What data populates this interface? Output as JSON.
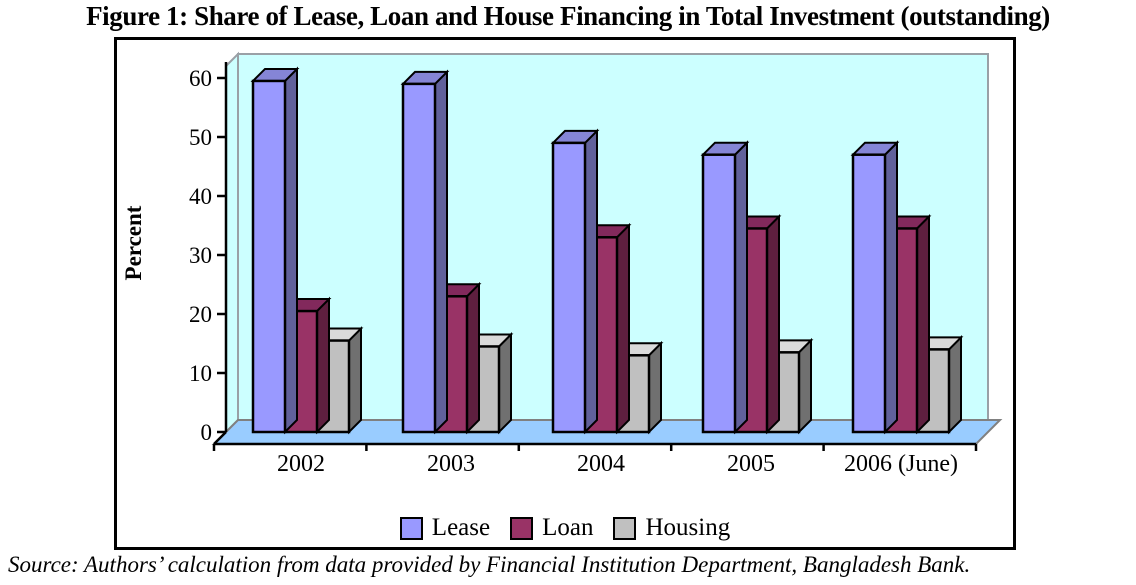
{
  "title": "Figure 1: Share of Lease, Loan and House Financing in Total Investment (outstanding)",
  "source_note": "Source: Authors’ calculation from data provided by Financial Institution Department, Bangladesh Bank.",
  "chart_data": {
    "type": "bar",
    "style": "3d-column",
    "title": "Figure 1: Share of Lease, Loan and House Financing in Total Investment (outstanding)",
    "categories": [
      "2002",
      "2003",
      "2004",
      "2005",
      "2006 (June)"
    ],
    "series": [
      {
        "name": "Lease",
        "color": "#9999FF",
        "top": "#8585D6",
        "side": "#61619B",
        "values": [
          59.5,
          59.0,
          49.0,
          47.0,
          47.0
        ]
      },
      {
        "name": "Loan",
        "color": "#993366",
        "top": "#82295C",
        "side": "#5E1F3F",
        "values": [
          20.5,
          23.0,
          33.0,
          34.5,
          34.5
        ]
      },
      {
        "name": "Housing",
        "color": "#C0C0C0",
        "top": "#DADADA",
        "side": "#707070",
        "values": [
          15.5,
          14.5,
          13.0,
          13.5,
          14.0
        ]
      }
    ],
    "xlabel": "",
    "ylabel": "Percent",
    "ylim": [
      0,
      60
    ],
    "yticks": [
      0,
      10,
      20,
      30,
      40,
      50,
      60
    ],
    "grid": false,
    "legend_position": "bottom",
    "plot_bg": "#CCFFFF",
    "floor_color": "#99CCFF",
    "wall_edge_color": "#9aa0a6",
    "bar_outline_color": "#000000"
  }
}
